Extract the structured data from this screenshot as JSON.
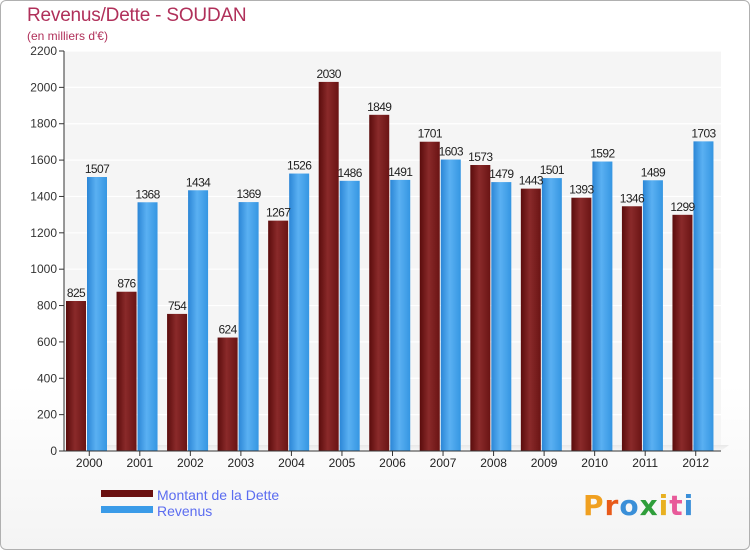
{
  "header": {
    "title": "Revenus/Dette - SOUDAN",
    "subtitle": "(en milliers d'€)"
  },
  "legend": {
    "debt_label": "Montant de la Dette",
    "revenue_label": "Revenus"
  },
  "logo": {
    "letters": [
      "P",
      "r",
      "o",
      "x",
      "i",
      "t",
      "i"
    ],
    "colors": [
      "#f0a020",
      "#e85a1a",
      "#3a8fd8",
      "#2f9e3a",
      "#e8b020",
      "#e85a9a",
      "#3a8fd8"
    ]
  },
  "colors": {
    "debt": "#7a1a1a",
    "revenue": "#3a9be8",
    "title": "#b0305a",
    "legend_text": "#5b6cf0"
  },
  "chart_data": {
    "type": "bar",
    "categories": [
      "2000",
      "2001",
      "2002",
      "2003",
      "2004",
      "2005",
      "2006",
      "2007",
      "2008",
      "2009",
      "2010",
      "2011",
      "2012"
    ],
    "series": [
      {
        "name": "Montant de la Dette",
        "values": [
          825,
          876,
          754,
          624,
          1267,
          2030,
          1849,
          1701,
          1573,
          1443,
          1393,
          1346,
          1299
        ]
      },
      {
        "name": "Revenus",
        "values": [
          1507,
          1368,
          1434,
          1369,
          1526,
          1486,
          1491,
          1603,
          1479,
          1501,
          1592,
          1489,
          1703
        ]
      }
    ],
    "title": "Revenus/Dette - SOUDAN",
    "subtitle": "(en milliers d'€)",
    "ylim": [
      0,
      2200
    ],
    "yticks": [
      0,
      200,
      400,
      600,
      800,
      1000,
      1200,
      1400,
      1600,
      1800,
      2000,
      2200
    ],
    "grid": true,
    "legend_position": "bottom-left"
  }
}
